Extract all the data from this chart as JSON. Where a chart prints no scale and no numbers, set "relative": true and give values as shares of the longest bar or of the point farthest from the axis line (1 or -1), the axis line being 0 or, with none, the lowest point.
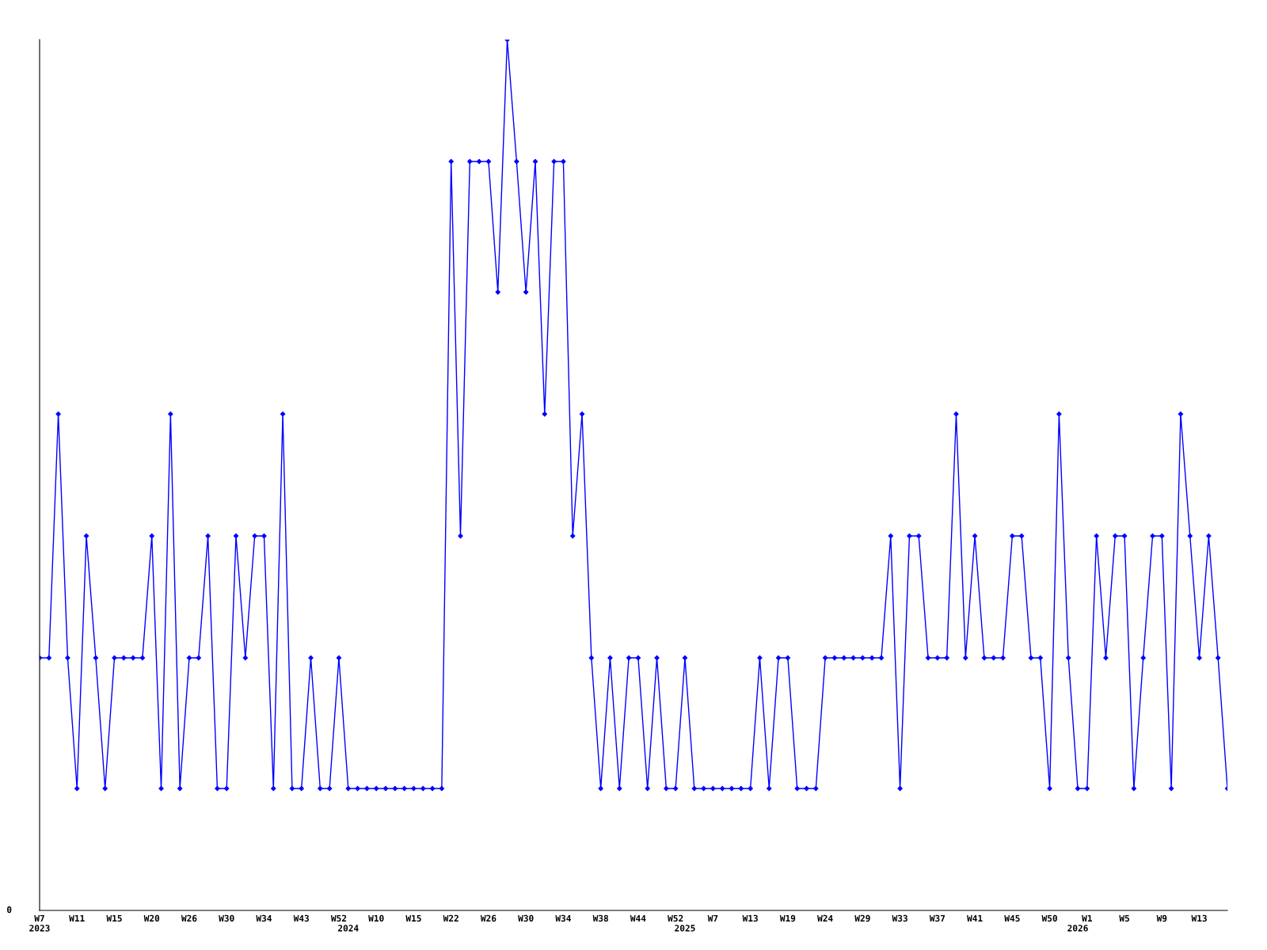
{
  "chart_data": {
    "type": "line",
    "relative": true,
    "categories": [
      "W7\n2023",
      null,
      null,
      null,
      "W11",
      null,
      null,
      null,
      "W15",
      null,
      null,
      null,
      "W20",
      null,
      null,
      null,
      "W26",
      null,
      null,
      null,
      "W30",
      null,
      null,
      null,
      "W34",
      null,
      null,
      null,
      "W43",
      null,
      null,
      null,
      "W52",
      "\n2024",
      null,
      null,
      "W10",
      null,
      null,
      null,
      "W15",
      null,
      null,
      null,
      "W22",
      null,
      null,
      null,
      "W26",
      null,
      null,
      null,
      "W30",
      null,
      null,
      null,
      "W34",
      null,
      null,
      null,
      "W38",
      null,
      null,
      null,
      "W44",
      null,
      null,
      null,
      "W52",
      "\n2025",
      null,
      null,
      "W7",
      null,
      null,
      null,
      "W13",
      null,
      null,
      null,
      "W19",
      null,
      null,
      null,
      "W24",
      null,
      null,
      null,
      "W29",
      null,
      null,
      null,
      "W33",
      null,
      null,
      null,
      "W37",
      null,
      null,
      null,
      "W41",
      null,
      null,
      null,
      "W45",
      null,
      null,
      null,
      "W50",
      null,
      null,
      "\n2026",
      "W1",
      null,
      null,
      null,
      "W5",
      null,
      null,
      null,
      "W9",
      null,
      null,
      null,
      "W13",
      null,
      null,
      null
    ],
    "series": [
      {
        "color": "#0000ff",
        "values": [
          0.29,
          0.29,
          0.57,
          0.29,
          0.14,
          0.43,
          0.29,
          0.14,
          0.29,
          0.29,
          0.29,
          0.29,
          0.43,
          0.14,
          0.57,
          0.14,
          0.29,
          0.29,
          0.43,
          0.14,
          0.14,
          0.43,
          0.29,
          0.43,
          0.43,
          0.14,
          0.57,
          0.14,
          0.14,
          0.29,
          0.14,
          0.14,
          0.29,
          0.14,
          0.14,
          0.14,
          0.14,
          0.14,
          0.14,
          0.14,
          0.14,
          0.14,
          0.14,
          0.14,
          0.86,
          0.43,
          0.86,
          0.86,
          0.86,
          0.71,
          1,
          0.86,
          0.71,
          0.86,
          0.57,
          0.86,
          0.86,
          0.43,
          0.57,
          0.29,
          0.14,
          0.29,
          0.14,
          0.29,
          0.29,
          0.14,
          0.29,
          0.14,
          0.14,
          0.29,
          0.14,
          0.14,
          0.14,
          0.14,
          0.14,
          0.14,
          0.14,
          0.29,
          0.14,
          0.29,
          0.29,
          0.14,
          0.14,
          0.14,
          0.29,
          0.29,
          0.29,
          0.29,
          0.29,
          0.29,
          0.29,
          0.43,
          0.14,
          0.43,
          0.43,
          0.29,
          0.29,
          0.29,
          0.57,
          0.29,
          0.43,
          0.29,
          0.29,
          0.29,
          0.43,
          0.43,
          0.29,
          0.29,
          0.14,
          0.57,
          0.29,
          0.14,
          0.14,
          0.43,
          0.29,
          0.43,
          0.43,
          0.14,
          0.29,
          0.43,
          0.43,
          0.14,
          0.57,
          0.43,
          0.29,
          0.43,
          0.29,
          0.14
        ]
      }
    ],
    "annotations": [
      "0"
    ],
    "marker": "diamond",
    "line_style": "solid",
    "grid": false,
    "legend": false
  }
}
